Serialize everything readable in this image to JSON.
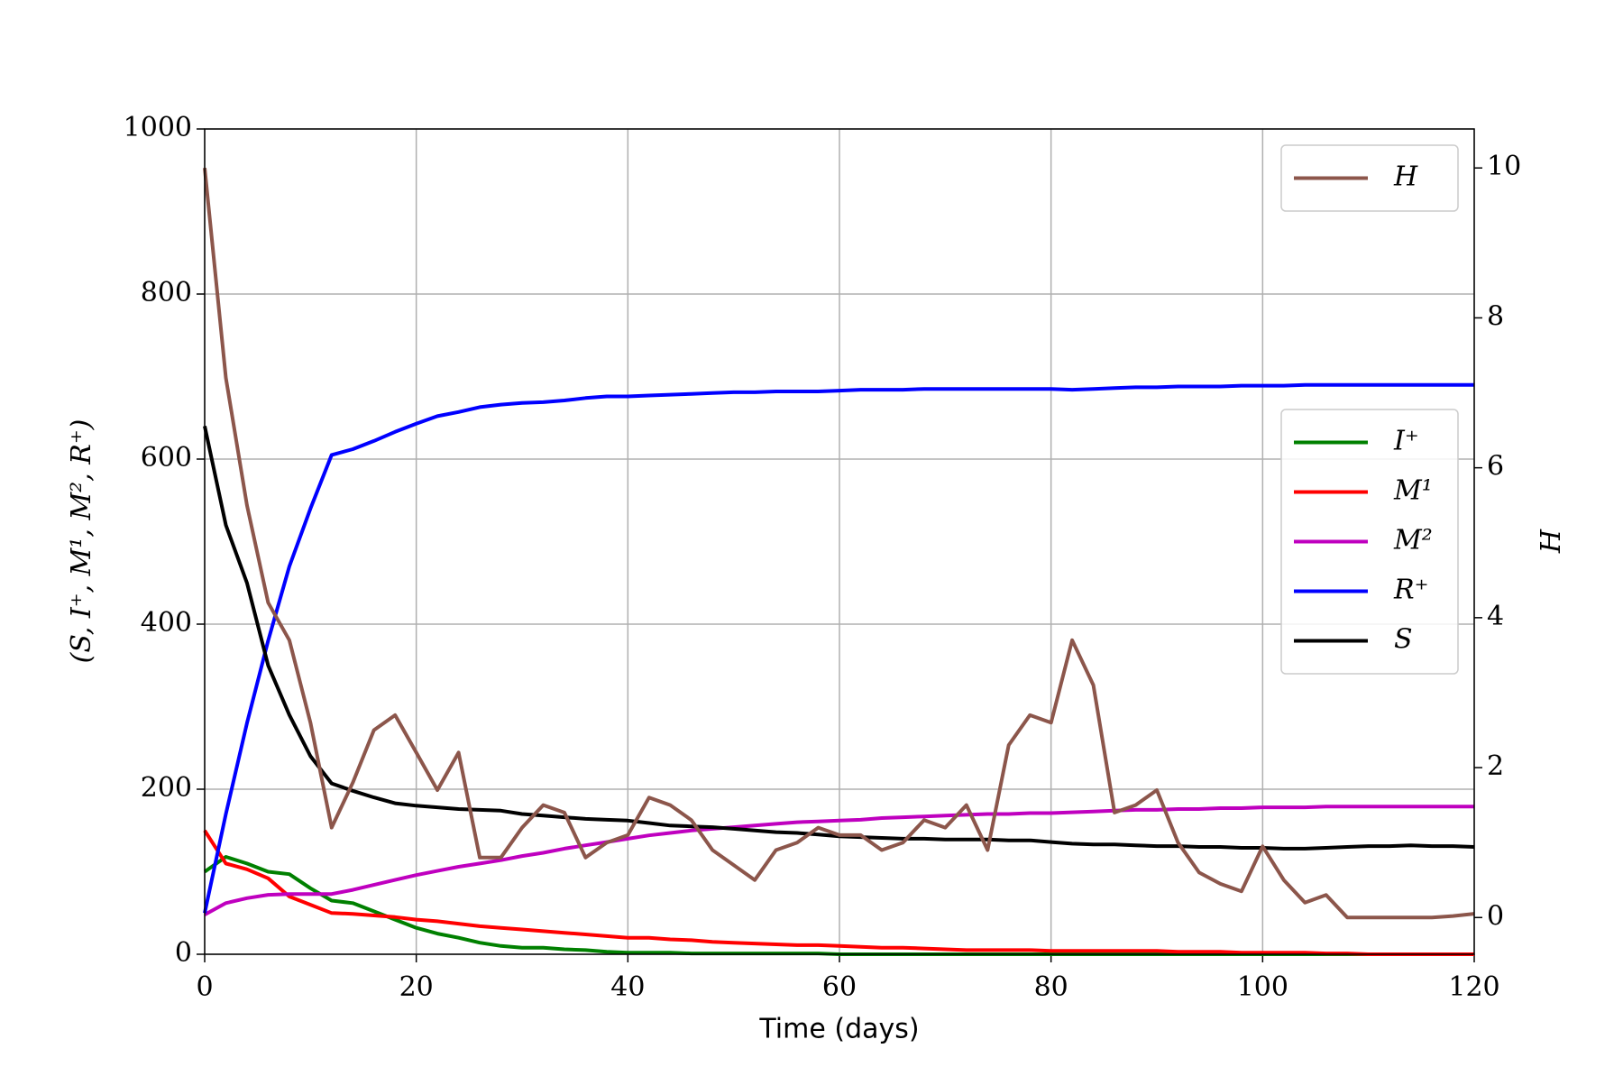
{
  "chart_data": {
    "type": "line",
    "xlabel": "Time (days)",
    "ylabel": "(S, I⁺, M¹, M², R⁺)",
    "y2label": "H",
    "x": [
      0,
      2,
      4,
      6,
      8,
      10,
      12,
      14,
      16,
      18,
      20,
      22,
      24,
      26,
      28,
      30,
      32,
      34,
      36,
      38,
      40,
      42,
      44,
      46,
      48,
      50,
      52,
      54,
      56,
      58,
      60,
      62,
      64,
      66,
      68,
      70,
      72,
      74,
      76,
      78,
      80,
      82,
      84,
      86,
      88,
      90,
      92,
      94,
      96,
      98,
      100,
      102,
      104,
      106,
      108,
      110,
      112,
      114,
      116,
      118,
      120
    ],
    "xlim": [
      0,
      120
    ],
    "xticks": [
      0,
      20,
      40,
      60,
      80,
      100,
      120
    ],
    "ylim": [
      0,
      1000
    ],
    "yticks": [
      0,
      200,
      400,
      600,
      800,
      1000
    ],
    "y2lim": [
      -0.49,
      10.52
    ],
    "y2ticks": [
      0,
      2,
      4,
      6,
      8,
      10
    ],
    "grid": true,
    "legend_loc": "center right",
    "legend2_loc": "upper right",
    "series": [
      {
        "name": "I⁺",
        "color": "#008000",
        "values": [
          100,
          118,
          110,
          100,
          97,
          80,
          65,
          62,
          52,
          42,
          32,
          25,
          20,
          14,
          10,
          8,
          8,
          6,
          5,
          3,
          2,
          2,
          2,
          1,
          1,
          1,
          1,
          1,
          1,
          1,
          0,
          0,
          0,
          0,
          0,
          0,
          0,
          0,
          0,
          0,
          0,
          0,
          0,
          0,
          0,
          0,
          0,
          0,
          0,
          0,
          0,
          0,
          0,
          0,
          0,
          0,
          0,
          0,
          0,
          0,
          0
        ]
      },
      {
        "name": "M¹",
        "color": "#ff0000",
        "values": [
          150,
          110,
          103,
          92,
          70,
          60,
          50,
          49,
          47,
          45,
          42,
          40,
          37,
          34,
          32,
          30,
          28,
          26,
          24,
          22,
          20,
          20,
          18,
          17,
          15,
          14,
          13,
          12,
          11,
          11,
          10,
          9,
          8,
          8,
          7,
          6,
          5,
          5,
          5,
          5,
          4,
          4,
          4,
          4,
          4,
          4,
          3,
          3,
          3,
          2,
          2,
          2,
          2,
          1,
          1,
          0,
          0,
          0,
          0,
          0,
          0
        ]
      },
      {
        "name": "M²",
        "color": "#bf00bf",
        "values": [
          48,
          62,
          68,
          72,
          73,
          73,
          73,
          78,
          84,
          90,
          96,
          101,
          106,
          110,
          114,
          119,
          123,
          128,
          132,
          136,
          140,
          144,
          147,
          150,
          152,
          154,
          156,
          158,
          160,
          161,
          162,
          163,
          165,
          166,
          167,
          168,
          169,
          170,
          170,
          171,
          171,
          172,
          173,
          174,
          175,
          175,
          176,
          176,
          177,
          177,
          178,
          178,
          178,
          179,
          179,
          179,
          179,
          179,
          179,
          179,
          179
        ]
      },
      {
        "name": "R⁺",
        "color": "#0000ff",
        "values": [
          50,
          170,
          280,
          380,
          470,
          540,
          605,
          612,
          622,
          633,
          643,
          652,
          657,
          663,
          666,
          668,
          669,
          671,
          674,
          676,
          676,
          677,
          678,
          679,
          680,
          681,
          681,
          682,
          682,
          682,
          683,
          684,
          684,
          684,
          685,
          685,
          685,
          685,
          685,
          685,
          685,
          684,
          685,
          686,
          687,
          687,
          688,
          688,
          688,
          689,
          689,
          689,
          690,
          690,
          690,
          690,
          690,
          690,
          690,
          690,
          690
        ]
      },
      {
        "name": "S",
        "color": "#000000",
        "values": [
          640,
          520,
          450,
          350,
          290,
          240,
          207,
          198,
          190,
          183,
          180,
          178,
          176,
          175,
          174,
          170,
          168,
          166,
          164,
          163,
          162,
          159,
          156,
          155,
          154,
          152,
          150,
          148,
          147,
          145,
          143,
          142,
          141,
          140,
          140,
          139,
          139,
          139,
          138,
          138,
          136,
          134,
          133,
          133,
          132,
          131,
          131,
          130,
          130,
          129,
          129,
          128,
          128,
          129,
          130,
          131,
          131,
          132,
          131,
          131,
          130
        ]
      },
      {
        "name": "H",
        "color": "#8c564b",
        "axis": "y2",
        "values": [
          10,
          7.2,
          5.5,
          4.2,
          3.7,
          2.6,
          1.2,
          1.8,
          2.5,
          2.7,
          2.2,
          1.7,
          2.2,
          0.8,
          0.8,
          1.2,
          1.5,
          1.4,
          0.8,
          1.0,
          1.1,
          1.6,
          1.5,
          1.3,
          0.9,
          0.7,
          0.5,
          0.9,
          1.0,
          1.2,
          1.1,
          1.1,
          0.9,
          1.0,
          1.3,
          1.2,
          1.5,
          0.9,
          2.3,
          2.7,
          2.6,
          3.7,
          3.1,
          1.4,
          1.5,
          1.7,
          1.0,
          0.6,
          0.45,
          0.35,
          0.95,
          0.5,
          0.2,
          0.3,
          0,
          0,
          0,
          0,
          0,
          0.02,
          0.05
        ]
      }
    ]
  }
}
